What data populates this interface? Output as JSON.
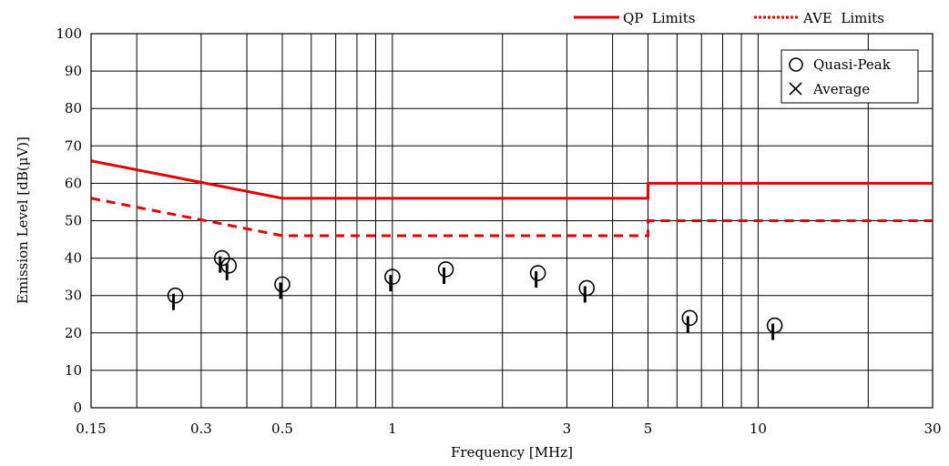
{
  "chart_data": {
    "type": "line",
    "xlabel": "Frequency [MHz]",
    "ylabel": "Emission Level [dB(μV)]",
    "x_scale": "log",
    "xlim": [
      0.15,
      30
    ],
    "ylim": [
      0,
      100
    ],
    "x_ticks": [
      0.15,
      0.3,
      0.5,
      1,
      3,
      5,
      10,
      30
    ],
    "x_tick_labels": [
      "0.15",
      "0.3",
      "0.5",
      "1",
      "3",
      "5",
      "10",
      "30"
    ],
    "x_minor_gridlines": [
      0.2,
      0.4,
      0.6,
      0.7,
      0.8,
      0.9,
      2,
      4,
      6,
      7,
      8,
      9,
      20
    ],
    "y_ticks": [
      0,
      10,
      20,
      30,
      40,
      50,
      60,
      70,
      80,
      90,
      100
    ],
    "y_tick_labels": [
      "0",
      "10",
      "20",
      "30",
      "40",
      "50",
      "60",
      "70",
      "80",
      "90",
      "100"
    ],
    "grid": true,
    "limit_lines": [
      {
        "name": "QP Limits",
        "style": "solid",
        "color": "#e00000",
        "points": [
          [
            0.15,
            66
          ],
          [
            0.5,
            56
          ],
          [
            5,
            56
          ],
          [
            5,
            60
          ],
          [
            30,
            60
          ]
        ]
      },
      {
        "name": "AVE Limits",
        "style": "dotted",
        "color": "#e00000",
        "points": [
          [
            0.15,
            56
          ],
          [
            0.5,
            46
          ],
          [
            5,
            46
          ],
          [
            5,
            50
          ],
          [
            30,
            50
          ]
        ]
      }
    ],
    "series": [
      {
        "name": "Quasi-Peak",
        "marker": "circle",
        "points": [
          [
            0.255,
            30
          ],
          [
            0.342,
            40
          ],
          [
            0.357,
            38
          ],
          [
            0.5,
            33
          ],
          [
            1.0,
            35
          ],
          [
            1.4,
            37
          ],
          [
            2.5,
            36
          ],
          [
            3.4,
            32
          ],
          [
            6.5,
            24
          ],
          [
            11.1,
            22
          ]
        ]
      },
      {
        "name": "Average",
        "marker": "x",
        "points": []
      }
    ],
    "legend_top": {
      "placement": "top-right, above plot",
      "entries": [
        {
          "label": "QP  Limits",
          "style": "solid"
        },
        {
          "label": "AVE  Limits",
          "style": "dotted"
        }
      ]
    },
    "legend_inner": {
      "placement": "top-right, inside plot",
      "entries": [
        {
          "label": "Quasi-Peak",
          "marker": "circle"
        },
        {
          "label": "Average",
          "marker": "x"
        }
      ]
    }
  }
}
